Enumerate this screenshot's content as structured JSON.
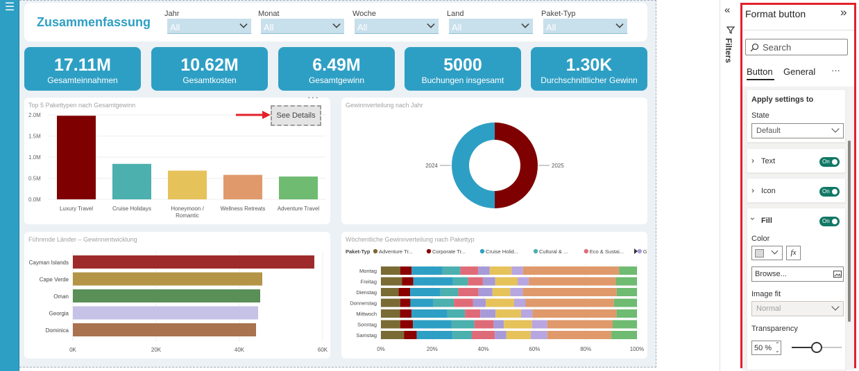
{
  "report": {
    "title": "Zusammenfassung",
    "slicers": [
      {
        "label": "Jahr",
        "value": "All"
      },
      {
        "label": "Monat",
        "value": "All"
      },
      {
        "label": "Woche",
        "value": "All"
      },
      {
        "label": "Land",
        "value": "All"
      },
      {
        "label": "Paket-Typ",
        "value": "All"
      }
    ],
    "kpis": [
      {
        "value": "17.11M",
        "label": "Gesamteinnahmen"
      },
      {
        "value": "10.62M",
        "label": "Gesamtkosten"
      },
      {
        "value": "6.49M",
        "label": "Gesamtgewinn"
      },
      {
        "value": "5000",
        "label": "Buchungen insgesamt"
      },
      {
        "value": "1.30K",
        "label": "Durchschnittlicher Gewinn"
      }
    ],
    "see_details": "See Details",
    "more_options": "···"
  },
  "chart_data": [
    {
      "type": "bar",
      "title": "Top 5 Pakettypen nach Gesamtgewinn",
      "categories": [
        "Luxury Travel",
        "Cruise Holidays",
        "Honeymoon / Romantic",
        "Wellness Retreats",
        "Adventure Travel"
      ],
      "category_lines": [
        [
          "Luxury Travel"
        ],
        [
          "Cruise Holidays"
        ],
        [
          "Honeymoon /",
          "Romantic"
        ],
        [
          "Wellness Retreats"
        ],
        [
          "Adventure Travel"
        ]
      ],
      "values": [
        1980000,
        840000,
        680000,
        580000,
        540000
      ],
      "colors": [
        "#7f0000",
        "#4bb0ae",
        "#e6c25a",
        "#e0996a",
        "#6ebb71"
      ],
      "yticks": [
        "0.0M",
        "0.5M",
        "1.0M",
        "1.5M",
        "2.0M"
      ],
      "ylim": [
        0,
        2000000
      ]
    },
    {
      "type": "pie",
      "title": "Gewinnverteilung nach Jahr",
      "labels": [
        "2024",
        "2025"
      ],
      "values": [
        50,
        50
      ],
      "colors": [
        "#7f0000",
        "#2e9fc4"
      ]
    },
    {
      "type": "bar",
      "orientation": "horizontal",
      "title": "Führende Länder – Gewinnentwicklung",
      "categories": [
        "Cayman Islands",
        "Cape Verde",
        "Oman",
        "Georgia",
        "Dominica"
      ],
      "values": [
        58000,
        45500,
        45000,
        44500,
        44000
      ],
      "colors": [
        "#9e2b2b",
        "#b49447",
        "#5a8f58",
        "#c6c1e6",
        "#a8734e"
      ],
      "xticks": [
        "0K",
        "20K",
        "40K",
        "60K"
      ],
      "xlim": [
        0,
        60000
      ]
    },
    {
      "type": "bar",
      "orientation": "horizontal",
      "stacked": "percent",
      "title": "Wöchentliche Gewinnverteilung nach Pakettyp",
      "legend_title": "Paket-Typ",
      "legend_labels": [
        "Adventure Tr...",
        "Corporate Tr...",
        "Cruise Holid...",
        "Cultural & ...",
        "Eco & Sustai...",
        "Group Tours"
      ],
      "categories": [
        "Montag",
        "Freitag",
        "Dienstag",
        "Donnerstag",
        "Mittwoch",
        "Sonntag",
        "Samstag"
      ],
      "xticks": [
        "0%",
        "20%",
        "40%",
        "60%",
        "80%",
        "100%"
      ],
      "colors": [
        "#7a6b35",
        "#8b0000",
        "#2e9fc4",
        "#4bb0ae",
        "#e06b78",
        "#a79ad8",
        "#e6c25a",
        "#b8a6e0",
        "#e0996a",
        "#6ebb71"
      ],
      "series": [
        {
          "name": "Adventure Tr...",
          "values": [
            7.5,
            8.5,
            7,
            7.5,
            7.5,
            7.5,
            9
          ]
        },
        {
          "name": "Corporate Tr...",
          "values": [
            4.5,
            4.5,
            4.5,
            4,
            4.5,
            5,
            5
          ]
        },
        {
          "name": "Cruise Holid...",
          "values": [
            12,
            16,
            12,
            9,
            14,
            15,
            14
          ]
        },
        {
          "name": "Cultural & ...",
          "values": [
            7,
            6,
            7,
            8,
            7,
            9,
            7.5
          ]
        },
        {
          "name": "Eco & Sustai...",
          "values": [
            7,
            6,
            8,
            7.5,
            6,
            7.5,
            9
          ]
        },
        {
          "name": "Group Tours",
          "values": [
            4.5,
            5,
            5.5,
            5,
            6,
            4,
            4.5
          ]
        },
        {
          "name": "",
          "values": [
            8.5,
            9,
            7,
            11,
            10,
            11,
            9.5
          ]
        },
        {
          "name": "",
          "values": [
            4.5,
            4.5,
            5,
            4.5,
            4.5,
            6,
            6.5
          ]
        },
        {
          "name": "",
          "values": [
            37.5,
            35,
            37,
            34.5,
            33,
            25.5,
            25
          ]
        },
        {
          "name": "",
          "values": [
            7,
            8.5,
            8,
            9,
            8,
            9.5,
            10
          ]
        }
      ]
    }
  ],
  "filters": {
    "label": "Filters"
  },
  "pane": {
    "title": "Format button",
    "search_placeholder": "Search",
    "tabs": [
      "Button",
      "General"
    ],
    "more": "···",
    "apply_settings_to": "Apply settings to",
    "state_label": "State",
    "state_value": "Default",
    "sections": [
      "Text",
      "Icon",
      "Fill"
    ],
    "toggle_label": "On",
    "color_label": "Color",
    "fx_label": "fx",
    "browse_label": "Browse...",
    "image_fit_label": "Image fit",
    "image_fit_value": "Normal",
    "transparency_label": "Transparency",
    "transparency_value": "50 %",
    "transparency_percent": 50
  }
}
